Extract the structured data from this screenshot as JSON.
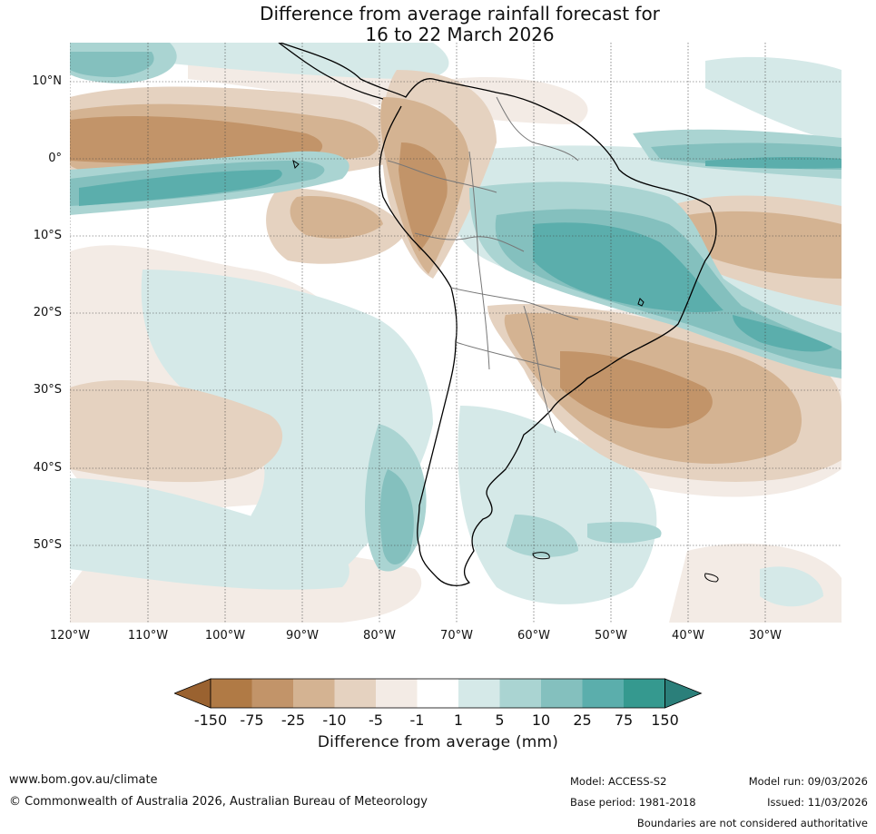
{
  "title": {
    "line1": "Difference from average rainfall forecast for",
    "line2": "16 to 22 March 2026"
  },
  "map": {
    "region": "South America",
    "lat_labels": [
      "10°N",
      "0°",
      "10°S",
      "20°S",
      "30°S",
      "40°S",
      "50°S"
    ],
    "lon_labels": [
      "120°W",
      "110°W",
      "100°W",
      "90°W",
      "80°W",
      "70°W",
      "60°W",
      "50°W",
      "40°W",
      "30°W"
    ]
  },
  "colorbar": {
    "label": "Difference from average (mm)",
    "ticks": [
      "-150",
      "-75",
      "-25",
      "-10",
      "-5",
      "-1",
      "1",
      "5",
      "10",
      "25",
      "75",
      "150"
    ],
    "colors": [
      "#9a6230",
      "#b07a45",
      "#c29469",
      "#d4b392",
      "#e5d2c0",
      "#f3ebe5",
      "#ffffff",
      "#d5e9e8",
      "#aad4d2",
      "#84c0be",
      "#5baeac",
      "#35998f",
      "#2b7f7a"
    ]
  },
  "footer": {
    "website": "www.bom.gov.au/climate",
    "copyright": "© Commonwealth of Australia 2026, Australian Bureau of Meteorology",
    "model": "Model: ACCESS-S2",
    "base_period": "Base period: 1981-2018",
    "model_run": "Model run: 09/03/2026",
    "issued": "Issued: 11/03/2026",
    "disclaimer": "Boundaries are not considered authoritative"
  }
}
